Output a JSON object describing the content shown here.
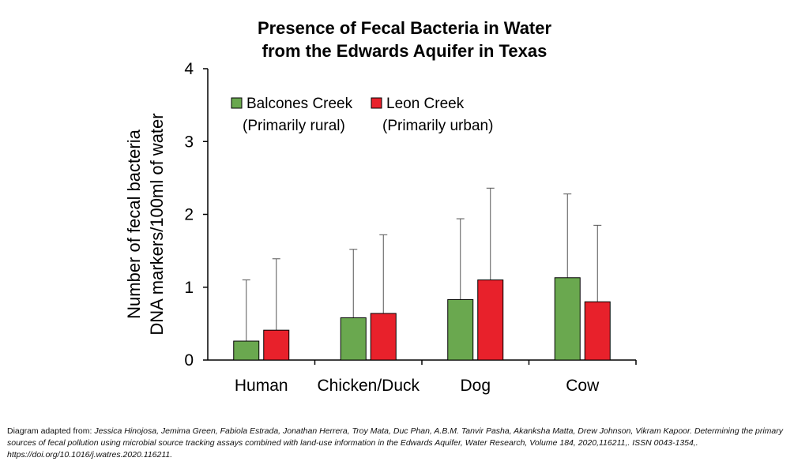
{
  "chart_data": {
    "type": "bar",
    "title": [
      "Presence of Fecal Bacteria in Water",
      "from the Edwards Aquifer in Texas"
    ],
    "ylabel": [
      "Number of fecal bacteria",
      "DNA markers/100ml of water"
    ],
    "xlabel": "",
    "ylim": [
      0,
      4
    ],
    "yticks": [
      "0",
      "1",
      "2",
      "3",
      "4"
    ],
    "categories": [
      "Human",
      "Chicken/Duck",
      "Dog",
      "Cow"
    ],
    "series": [
      {
        "name": "Balcones Creek",
        "sub": "(Primarily rural)",
        "color": "#6aa84f",
        "values": [
          0.26,
          0.58,
          0.83,
          1.13
        ],
        "error_upper": [
          1.1,
          1.52,
          1.94,
          2.28
        ]
      },
      {
        "name": "Leon Creek",
        "sub": "(Primarily urban)",
        "color": "#e8212b",
        "values": [
          0.41,
          0.64,
          1.1,
          0.8
        ],
        "error_upper": [
          1.39,
          1.72,
          2.36,
          1.85
        ]
      }
    ],
    "legend_position": "top-left"
  },
  "caption": {
    "prefix": "Diagram adapted from: ",
    "citation": "Jessica Hinojosa, Jemima Green, Fabiola Estrada, Jonathan Herrera, Troy Mata, Duc Phan, A.B.M. Tanvir Pasha, Akanksha Matta, Drew Johnson, Vikram Kapoor. Determining the primary sources of fecal pollution using microbial source tracking assays combined with land-use information in the Edwards Aquifer, Water Research, Volume 184, 2020,116211,. ISSN 0043-1354,. https://doi.org/10.1016/j.watres.2020.116211."
  }
}
